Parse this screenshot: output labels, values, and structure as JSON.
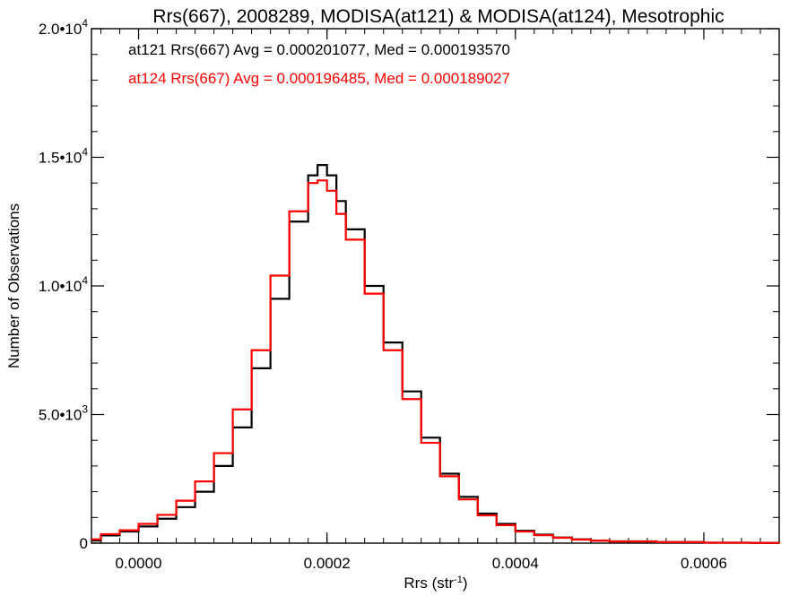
{
  "chart_data": {
    "type": "line",
    "title": "Rrs(667), 2008289, MODISA(at121) & MODISA(at124), Mesotrophic",
    "xlabel": "Rrs (str",
    "xlabel_sup": "-1",
    "xlabel_end": ")",
    "ylabel": "Number of Observations",
    "xlim": [
      -5e-05,
      0.00068
    ],
    "ylim": [
      0,
      20000
    ],
    "x_ticks": [
      {
        "value": 0.0,
        "label": "0.0000"
      },
      {
        "value": 0.0002,
        "label": "0.0002"
      },
      {
        "value": 0.0004,
        "label": "0.0004"
      },
      {
        "value": 0.0006,
        "label": "0.0006"
      }
    ],
    "y_ticks": [
      {
        "value": 0,
        "mant": "0",
        "exp": ""
      },
      {
        "value": 5000,
        "mant": "5.0•10",
        "exp": "3"
      },
      {
        "value": 10000,
        "mant": "1.0•10",
        "exp": "4"
      },
      {
        "value": 15000,
        "mant": "1.5•10",
        "exp": "4"
      },
      {
        "value": 20000,
        "mant": "2.0•10",
        "exp": "4"
      }
    ],
    "grid": false,
    "legend_placement": "top-left",
    "series": [
      {
        "name": "at121",
        "label": "at121 Rrs(667) Avg = 0.000201077, Med = 0.000193570",
        "color": "#000000",
        "x": [
          -5e-05,
          -4e-05,
          -2e-05,
          0.0,
          2e-05,
          4e-05,
          6e-05,
          8e-05,
          0.0001,
          0.00012,
          0.00014,
          0.00016,
          0.00018,
          0.00019,
          0.0002,
          0.00021,
          0.00022,
          0.00024,
          0.00026,
          0.00028,
          0.0003,
          0.00032,
          0.00034,
          0.00036,
          0.00038,
          0.0004,
          0.00042,
          0.00044,
          0.00046,
          0.00048,
          0.0005,
          0.00055,
          0.0006,
          0.00065,
          0.00068
        ],
        "y": [
          100,
          300,
          450,
          650,
          950,
          1400,
          2000,
          3000,
          4500,
          6800,
          9500,
          12500,
          14300,
          14700,
          14300,
          13300,
          12200,
          10000,
          7800,
          5900,
          4100,
          2700,
          1800,
          1150,
          750,
          480,
          330,
          220,
          150,
          100,
          70,
          40,
          20,
          10,
          5
        ]
      },
      {
        "name": "at124",
        "label": "at124 Rrs(667) Avg = 0.000196485, Med = 0.000189027",
        "color": "#ff0000",
        "x": [
          -5e-05,
          -4e-05,
          -2e-05,
          0.0,
          2e-05,
          4e-05,
          6e-05,
          8e-05,
          0.0001,
          0.00012,
          0.00014,
          0.00016,
          0.00018,
          0.00019,
          0.0002,
          0.00021,
          0.00022,
          0.00024,
          0.00026,
          0.00028,
          0.0003,
          0.00032,
          0.00034,
          0.00036,
          0.00038,
          0.0004,
          0.00042,
          0.00044,
          0.00046,
          0.00048,
          0.0005,
          0.00055,
          0.0006,
          0.00065,
          0.00068
        ],
        "y": [
          150,
          350,
          500,
          750,
          1100,
          1650,
          2400,
          3500,
          5200,
          7500,
          10400,
          12900,
          14000,
          14100,
          13700,
          12800,
          11800,
          9700,
          7500,
          5600,
          3900,
          2600,
          1700,
          1080,
          700,
          450,
          310,
          210,
          140,
          95,
          65,
          38,
          18,
          9,
          4
        ]
      }
    ]
  }
}
